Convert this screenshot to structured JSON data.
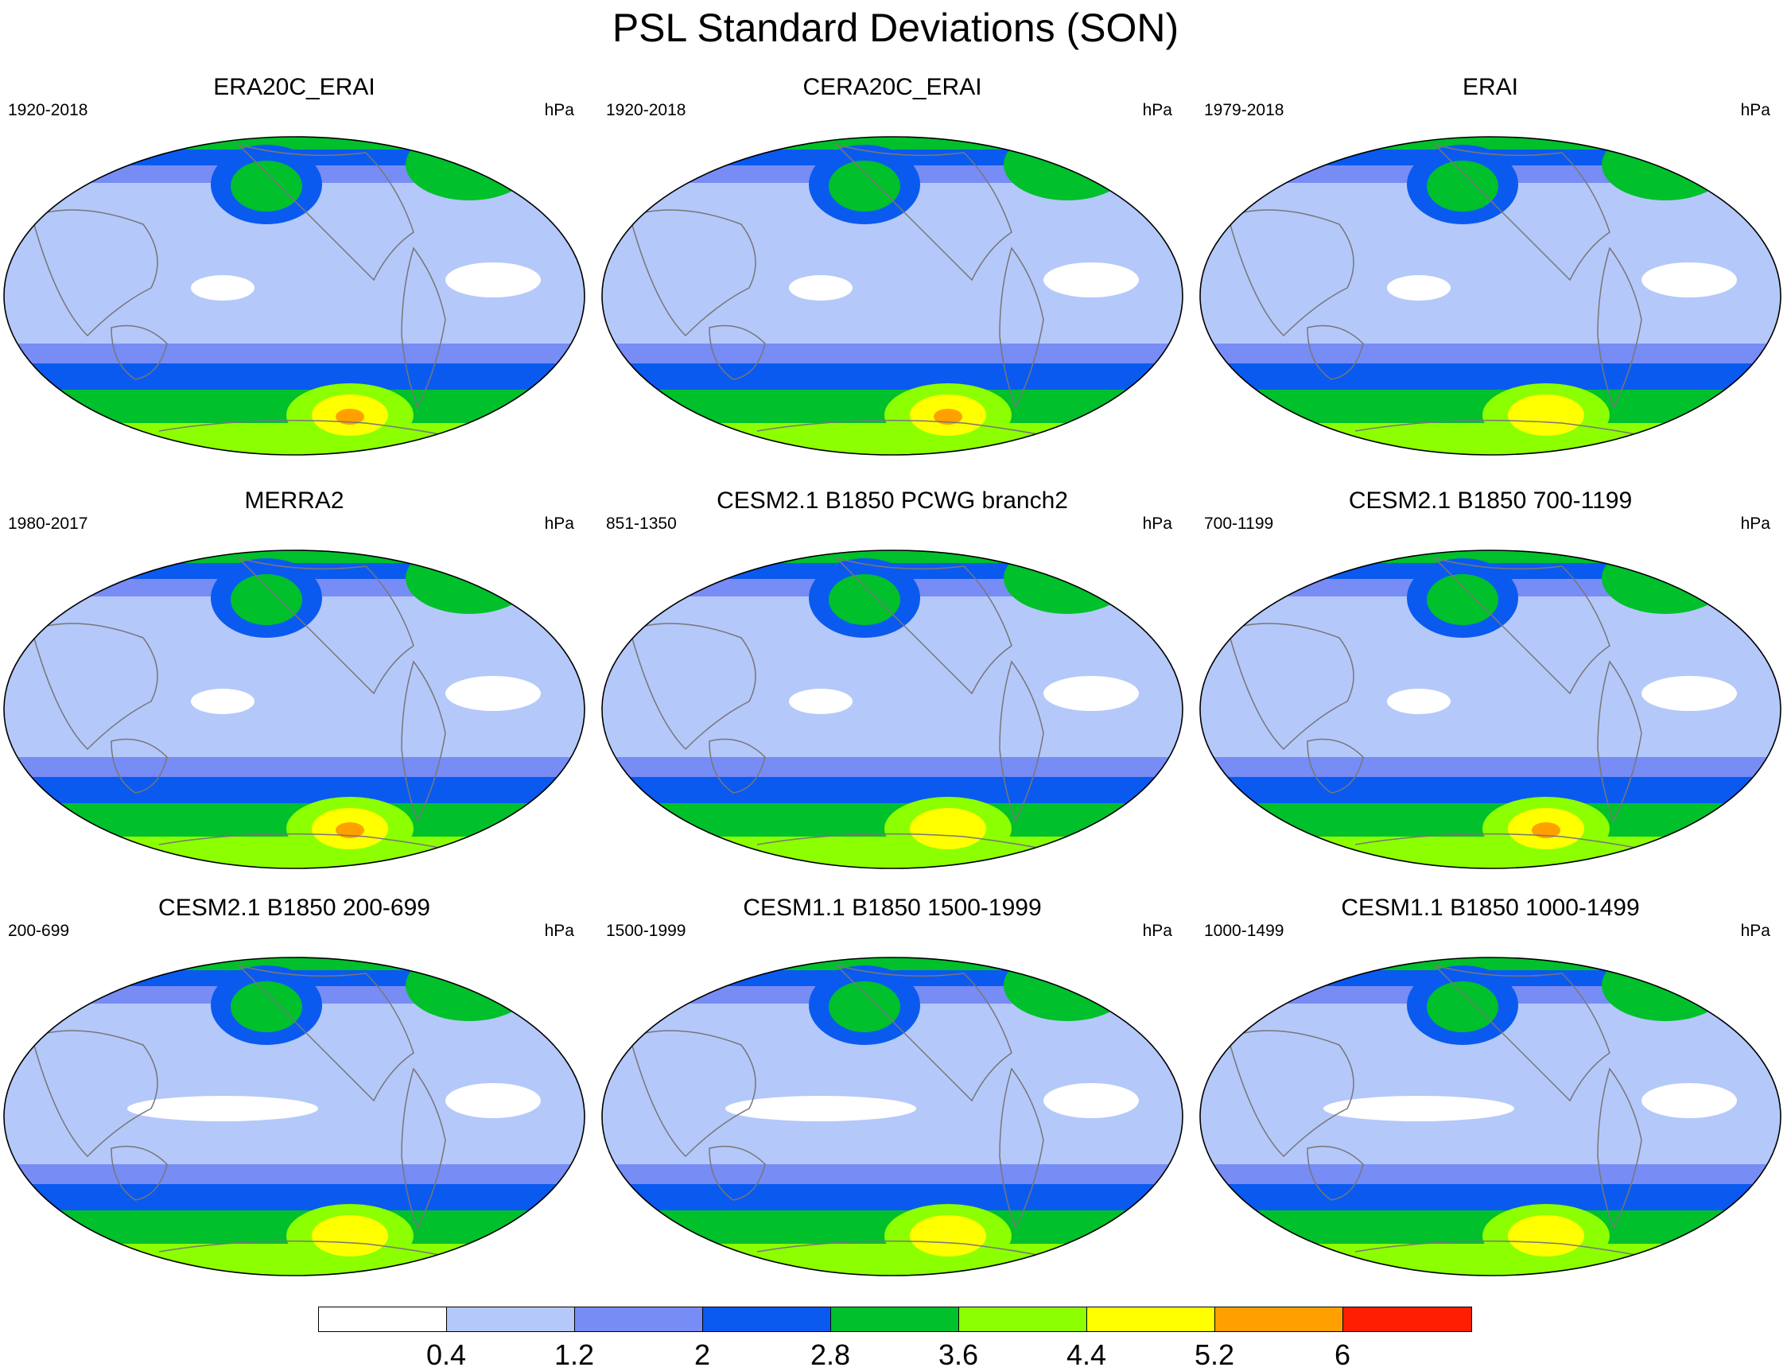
{
  "title": "PSL Standard Deviations (SON)",
  "panels": [
    {
      "title": "ERA20C_ERAI",
      "period": "1920-2018",
      "units": "hPa"
    },
    {
      "title": "CERA20C_ERAI",
      "period": "1920-2018",
      "units": "hPa"
    },
    {
      "title": "ERAI",
      "period": "1979-2018",
      "units": "hPa"
    },
    {
      "title": "MERRA2",
      "period": "1980-2017",
      "units": "hPa"
    },
    {
      "title": "CESM2.1 B1850 PCWG branch2",
      "period": "851-1350",
      "units": "hPa"
    },
    {
      "title": "CESM2.1 B1850 700-1199",
      "period": "700-1199",
      "units": "hPa"
    },
    {
      "title": "CESM2.1 B1850 200-699",
      "period": "200-699",
      "units": "hPa"
    },
    {
      "title": "CESM1.1 B1850 1500-1999",
      "period": "1500-1999",
      "units": "hPa"
    },
    {
      "title": "CESM1.1 B1850 1000-1499",
      "period": "1000-1499",
      "units": "hPa"
    }
  ],
  "colorbar": {
    "labels": [
      "0.4",
      "1.2",
      "2",
      "2.8",
      "3.6",
      "4.4",
      "5.2",
      "6"
    ],
    "colors": [
      "#ffffff",
      "#b4c8fa",
      "#788cf5",
      "#0a5af0",
      "#00c02c",
      "#8cff00",
      "#ffff00",
      "#ffa000",
      "#ff1e00"
    ]
  }
}
